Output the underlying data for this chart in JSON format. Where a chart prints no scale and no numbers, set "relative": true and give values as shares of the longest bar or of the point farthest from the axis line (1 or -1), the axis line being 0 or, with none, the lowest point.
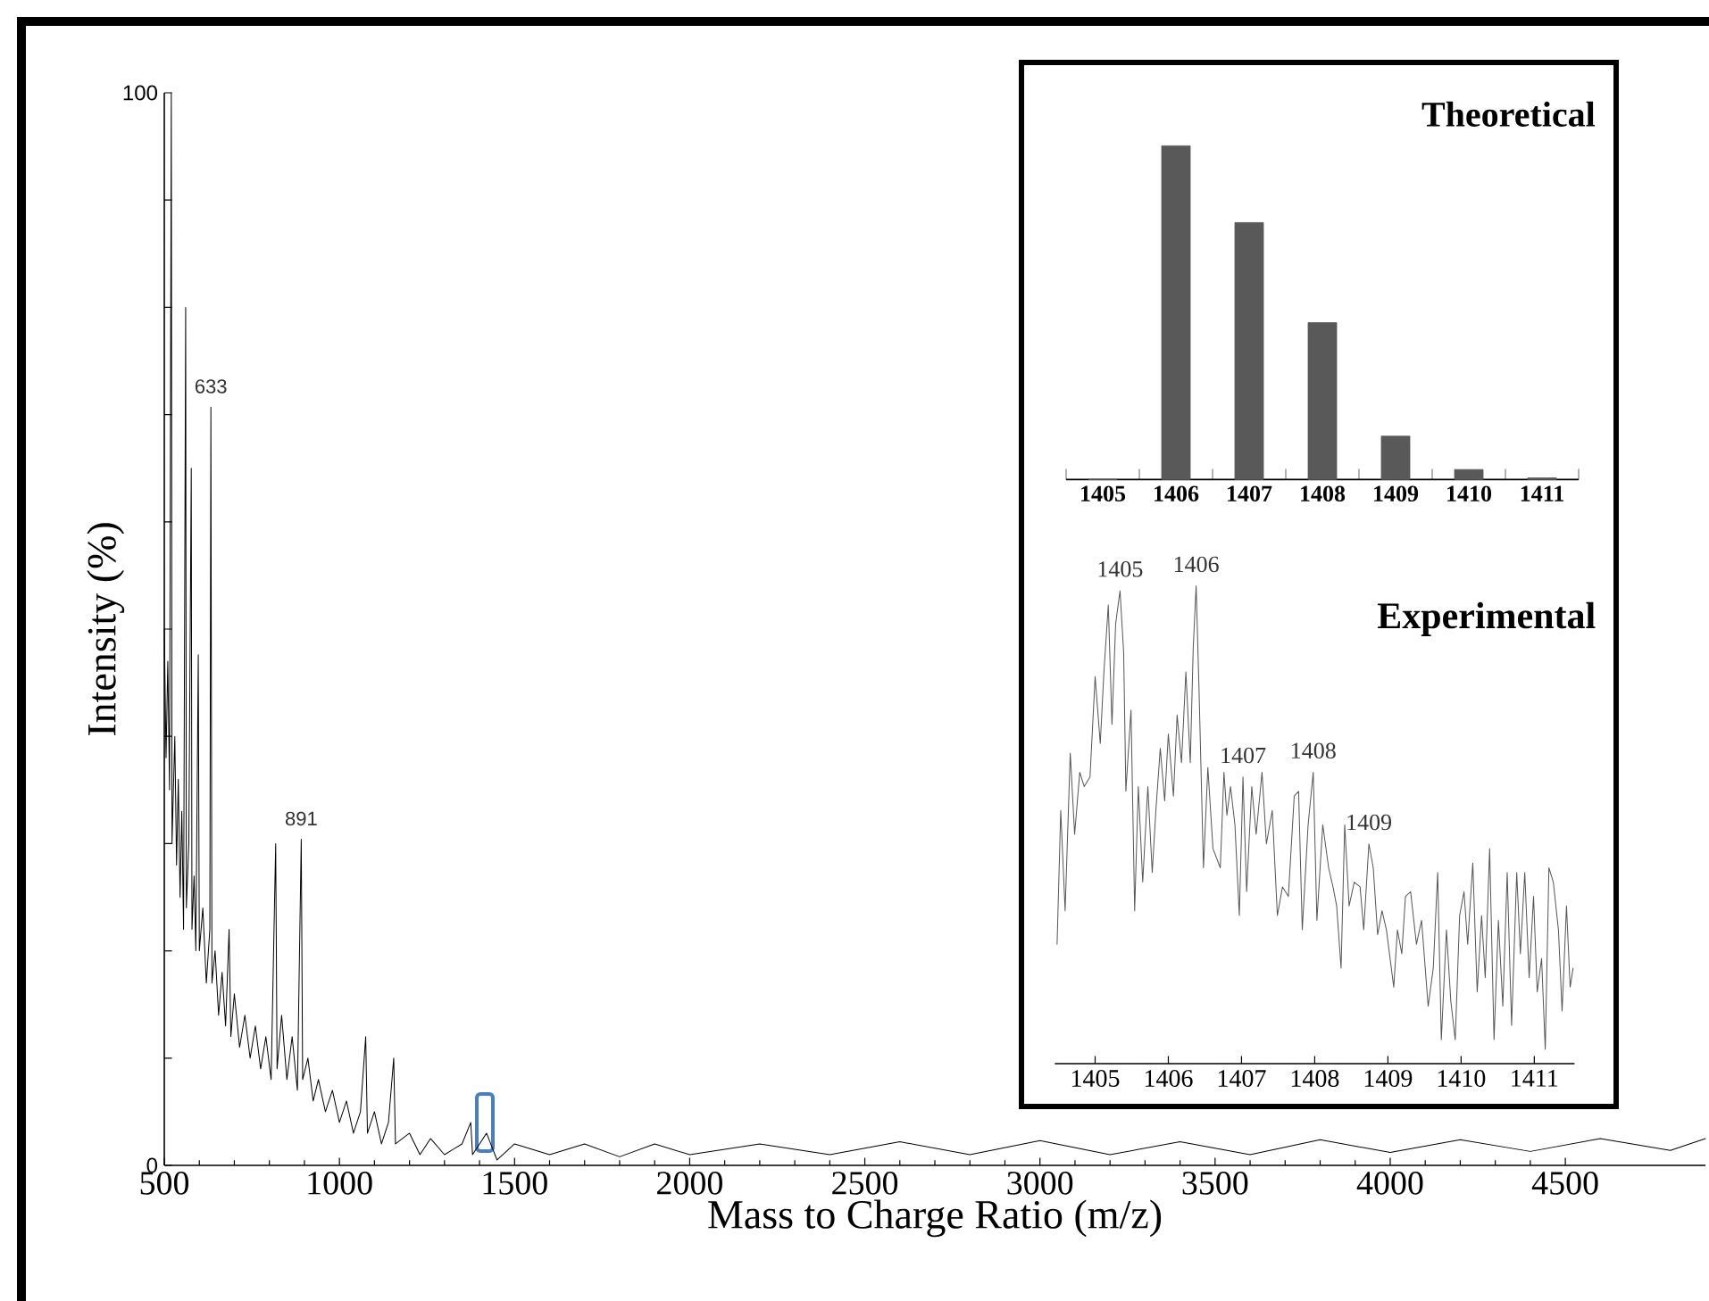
{
  "chart_data": [
    {
      "type": "line",
      "xlabel": "Mass to Charge Ratio (m/z)",
      "ylabel": "Intensity (%)",
      "color": "#000000",
      "x": [
        500,
        505,
        510,
        515,
        520,
        522,
        530,
        535,
        540,
        545,
        550,
        555,
        561,
        563,
        570,
        577,
        579,
        585,
        590,
        597,
        600,
        610,
        620,
        630,
        633,
        636,
        645,
        655,
        665,
        675,
        685,
        690,
        700,
        715,
        730,
        745,
        760,
        775,
        790,
        805,
        818,
        822,
        835,
        850,
        865,
        880,
        891,
        895,
        910,
        925,
        940,
        960,
        980,
        1000,
        1020,
        1040,
        1060,
        1075,
        1080,
        1100,
        1120,
        1140,
        1155,
        1160,
        1200,
        1230,
        1260,
        1300,
        1350,
        1375,
        1380,
        1420,
        1450,
        1500,
        1600,
        1700,
        1800,
        1900,
        2000,
        2200,
        2400,
        2600,
        2800,
        3000,
        3200,
        3400,
        3600,
        3800,
        4000,
        4200,
        4400,
        4600,
        4800,
        4900
      ],
      "values": [
        50,
        38,
        47,
        35,
        100,
        30,
        40,
        28,
        36,
        25,
        33,
        22,
        80,
        24,
        30,
        65,
        22,
        27,
        20,
        47.6,
        20,
        24,
        17,
        22,
        70.7,
        17,
        20,
        14,
        18,
        13,
        22,
        12,
        16,
        11,
        14,
        10,
        13,
        9,
        12,
        8,
        30,
        9,
        14,
        8,
        12,
        7,
        30.4,
        8,
        10,
        6,
        8,
        5,
        7,
        4,
        6,
        3,
        5,
        12,
        3,
        5,
        2,
        4,
        10,
        2,
        3,
        1,
        2.5,
        1,
        2,
        4,
        1,
        3,
        0.5,
        2,
        1,
        2,
        0.8,
        2,
        1,
        2,
        1,
        2.2,
        1,
        2.3,
        1,
        2.2,
        1,
        2.4,
        1.2,
        2.4,
        1.3,
        2.5,
        1.4,
        2.5
      ],
      "xlim": [
        500,
        4900
      ],
      "ylim": [
        0,
        100
      ],
      "xticks": [
        500,
        1000,
        1500,
        2000,
        2500,
        3000,
        3500,
        4000,
        4500
      ],
      "yticks": [
        0,
        {
          "value": 10,
          "label": null
        },
        {
          "value": 20,
          "label": null
        },
        {
          "value": 30,
          "label": null
        },
        {
          "value": 40,
          "label": null
        },
        {
          "value": 50,
          "label": null
        },
        {
          "value": 60,
          "label": null
        },
        {
          "value": 70,
          "label": null
        },
        {
          "value": 80,
          "label": null
        },
        {
          "value": 90,
          "label": null
        },
        100
      ],
      "annotations": [
        {
          "text": "633",
          "x": 633,
          "y": 70.7
        },
        {
          "text": "891",
          "x": 891,
          "y": 30.4
        }
      ]
    },
    {
      "type": "bar",
      "title": "Theoretical",
      "relative": true,
      "color": "#595959",
      "categories": [
        "1405",
        "1406",
        "1407",
        "1408",
        "1409",
        "1410",
        "1411"
      ],
      "values": [
        0,
        1,
        0.77,
        0.47,
        0.13,
        0.03,
        0.005
      ]
    },
    {
      "type": "line",
      "title": "Experimental",
      "relative": true,
      "color": "#555555",
      "x": [
        1404.48,
        1404.53,
        1404.59,
        1404.66,
        1404.72,
        1404.79,
        1404.85,
        1404.93,
        1405.0,
        1405.07,
        1405.12,
        1405.18,
        1405.23,
        1405.28,
        1405.34,
        1405.39,
        1405.42,
        1405.49,
        1405.54,
        1405.59,
        1405.65,
        1405.72,
        1405.78,
        1405.83,
        1405.89,
        1405.95,
        1406.0,
        1406.07,
        1406.12,
        1406.18,
        1406.24,
        1406.3,
        1406.34,
        1406.38,
        1406.42,
        1406.48,
        1406.54,
        1406.61,
        1406.71,
        1406.76,
        1406.8,
        1406.85,
        1406.91,
        1406.97,
        1407.02,
        1407.07,
        1407.14,
        1407.2,
        1407.28,
        1407.34,
        1407.42,
        1407.49,
        1407.56,
        1407.64,
        1407.72,
        1407.78,
        1407.83,
        1407.91,
        1407.98,
        1408.03,
        1408.11,
        1408.19,
        1408.25,
        1408.3,
        1408.36,
        1408.41,
        1408.47,
        1408.54,
        1408.62,
        1408.67,
        1408.74,
        1408.8,
        1408.86,
        1408.92,
        1408.98,
        1409.08,
        1409.13,
        1409.19,
        1409.24,
        1409.31,
        1409.39,
        1409.46,
        1409.55,
        1409.62,
        1409.68,
        1409.73,
        1409.8,
        1409.86,
        1409.92,
        1409.98,
        1410.04,
        1410.09,
        1410.16,
        1410.22,
        1410.28,
        1410.33,
        1410.39,
        1410.45,
        1410.51,
        1410.57,
        1410.63,
        1410.69,
        1410.76,
        1410.81,
        1410.87,
        1410.93,
        1410.99,
        1411.04,
        1411.1,
        1411.15,
        1411.2,
        1411.26,
        1411.33,
        1411.38,
        1411.44,
        1411.49,
        1411.53
      ],
      "values": [
        0.25,
        0.53,
        0.32,
        0.65,
        0.48,
        0.61,
        0.58,
        0.6,
        0.81,
        0.67,
        0.82,
        0.96,
        0.71,
        0.92,
        0.99,
        0.86,
        0.57,
        0.74,
        0.32,
        0.58,
        0.38,
        0.58,
        0.4,
        0.53,
        0.66,
        0.55,
        0.69,
        0.56,
        0.73,
        0.63,
        0.82,
        0.63,
        0.87,
        1,
        0.78,
        0.41,
        0.62,
        0.45,
        0.41,
        0.61,
        0.52,
        0.58,
        0.5,
        0.31,
        0.6,
        0.36,
        0.58,
        0.48,
        0.61,
        0.46,
        0.53,
        0.31,
        0.37,
        0.35,
        0.56,
        0.57,
        0.28,
        0.5,
        0.61,
        0.3,
        0.5,
        0.41,
        0.37,
        0.33,
        0.2,
        0.5,
        0.33,
        0.38,
        0.37,
        0.28,
        0.46,
        0.41,
        0.27,
        0.32,
        0.28,
        0.16,
        0.28,
        0.23,
        0.35,
        0.36,
        0.25,
        0.3,
        0.12,
        0.2,
        0.4,
        0.05,
        0.28,
        0.13,
        0.05,
        0.31,
        0.36,
        0.25,
        0.42,
        0.15,
        0.31,
        0.18,
        0.45,
        0.05,
        0.3,
        0.12,
        0.4,
        0.08,
        0.4,
        0.23,
        0.4,
        0.18,
        0.35,
        0.15,
        0.22,
        0.03,
        0.41,
        0.38,
        0.28,
        0.11,
        0.33,
        0.16,
        0.2
      ],
      "xlim": [
        1404.45,
        1411.55
      ],
      "xticks": [
        1405,
        1406,
        1407,
        1408,
        1409,
        1410,
        1411
      ],
      "annotations": [
        {
          "text": "1405",
          "x": 1405.34,
          "y": 0.99
        },
        {
          "text": "1406",
          "x": 1406.38,
          "y": 1
        },
        {
          "text": "1407",
          "x": 1407.02,
          "y": 0.6
        },
        {
          "text": "1408",
          "x": 1407.98,
          "y": 0.61
        },
        {
          "text": "1409",
          "x": 1408.74,
          "y": 0.46
        }
      ]
    }
  ]
}
